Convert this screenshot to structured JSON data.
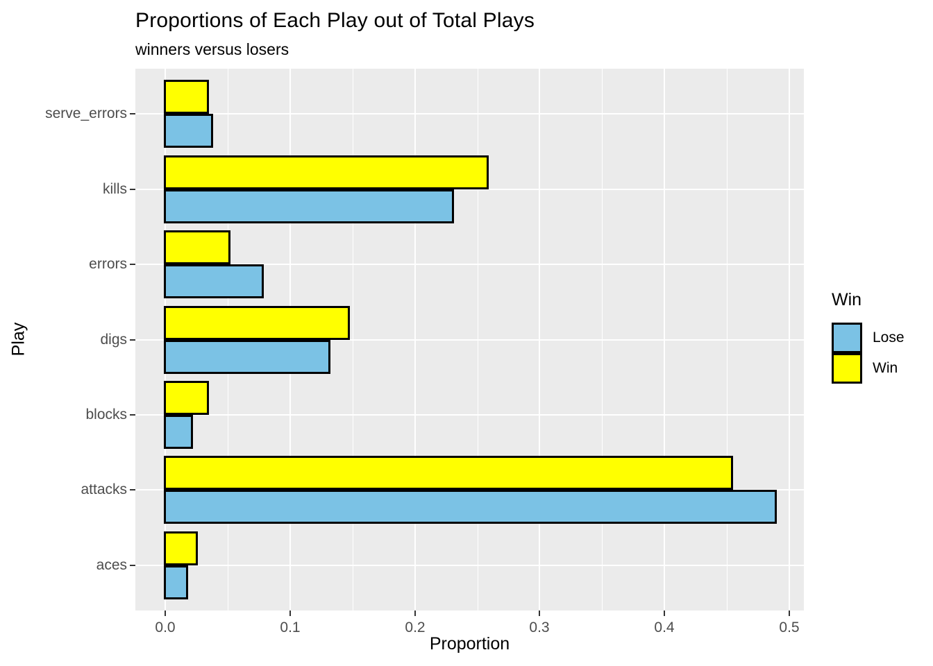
{
  "title": "Proportions of Each Play out of Total Plays",
  "subtitle": "winners versus losers",
  "x_axis": {
    "label": "Proportion",
    "ticks": [
      "0.0",
      "0.1",
      "0.2",
      "0.3",
      "0.4",
      "0.5"
    ]
  },
  "y_axis": {
    "label": "Play",
    "categories_top_to_bottom": [
      "serve_errors",
      "kills",
      "errors",
      "digs",
      "blocks",
      "attacks",
      "aces"
    ]
  },
  "legend": {
    "title": "Win",
    "position": "right",
    "items": [
      {
        "label": "Lose",
        "color": "#7BC2E5"
      },
      {
        "label": "Win",
        "color": "#FFFF00"
      }
    ]
  },
  "colors": {
    "panel_background": "#EBEBEB",
    "grid": "#FFFFFF",
    "bar_border": "#000000",
    "win_fill": "#FFFF00",
    "lose_fill": "#7BC2E5",
    "axis_text": "#4D4D4D",
    "tick_mark": "#333333"
  },
  "chart_data": {
    "type": "bar",
    "orientation": "horizontal",
    "bar_grouping": "dodged",
    "title": "Proportions of Each Play out of Total Plays",
    "subtitle": "winners versus losers",
    "xlabel": "Proportion",
    "ylabel": "Play",
    "categories": [
      "serve_errors",
      "kills",
      "errors",
      "digs",
      "blocks",
      "attacks",
      "aces"
    ],
    "series": [
      {
        "name": "Win",
        "color": "#FFFF00",
        "values": [
          0.034,
          0.258,
          0.051,
          0.147,
          0.034,
          0.454,
          0.025
        ]
      },
      {
        "name": "Lose",
        "color": "#7BC2E5",
        "values": [
          0.037,
          0.23,
          0.078,
          0.131,
          0.021,
          0.489,
          0.017
        ]
      }
    ],
    "series_order_note": "Win bar drawn above Lose bar within each category",
    "xlim": [
      0,
      0.512
    ],
    "x_major_gridlines": [
      0,
      0.1,
      0.2,
      0.3,
      0.4,
      0.5
    ],
    "x_minor_gridlines": [
      0.05,
      0.15,
      0.25,
      0.35,
      0.45
    ],
    "grid": true,
    "panel_style": "gray panel with white gridlines",
    "legend_position": "right"
  }
}
